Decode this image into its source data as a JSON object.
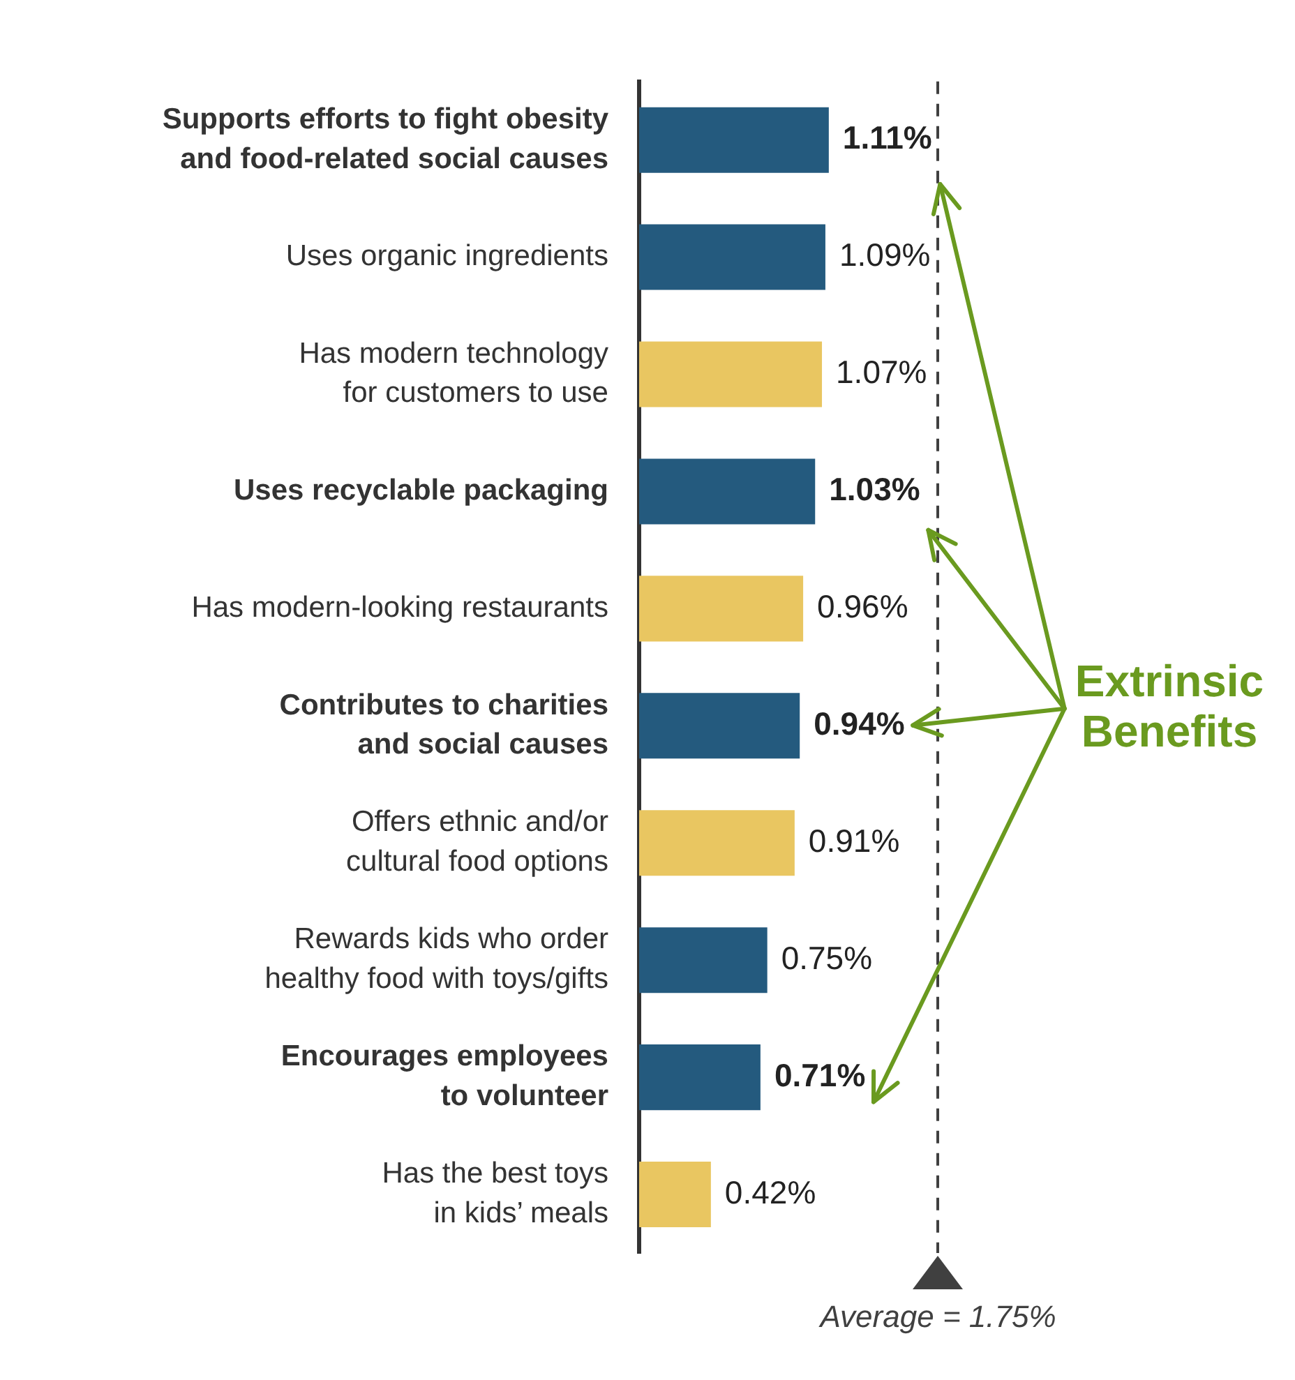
{
  "chart_data": {
    "type": "bar",
    "orientation": "horizontal",
    "categories": [
      "Supports efforts to fight obesity and food-related social causes",
      "Uses organic ingredients",
      "Has modern technology for customers to use",
      "Uses recyclable packaging",
      "Has modern-looking restaurants",
      "Contributes to charities and social causes",
      "Offers ethnic and/or cultural food options",
      "Rewards kids who order healthy food with toys/gifts",
      "Encourages employees to volunteer",
      "Has the best toys in kids’ meals"
    ],
    "values": [
      1.11,
      1.09,
      1.07,
      1.03,
      0.96,
      0.94,
      0.91,
      0.75,
      0.71,
      0.42
    ],
    "value_labels": [
      "1.11%",
      "1.09%",
      "1.07%",
      "1.03%",
      "0.96%",
      "0.94%",
      "0.91%",
      "0.75%",
      "0.71%",
      "0.42%"
    ],
    "colors": [
      "#245a7e",
      "#245a7e",
      "#e9c661",
      "#245a7e",
      "#e9c661",
      "#245a7e",
      "#e9c661",
      "#245a7e",
      "#245a7e",
      "#e9c661"
    ],
    "tick_labels": "y",
    "ref_lines": [
      {
        "axis": "x",
        "value": 1.75,
        "label": "Average = 1.75%",
        "color": "#404040",
        "line_style": "dashed"
      }
    ],
    "annotations": [
      "Extrinsic Benefits"
    ]
  }
}
